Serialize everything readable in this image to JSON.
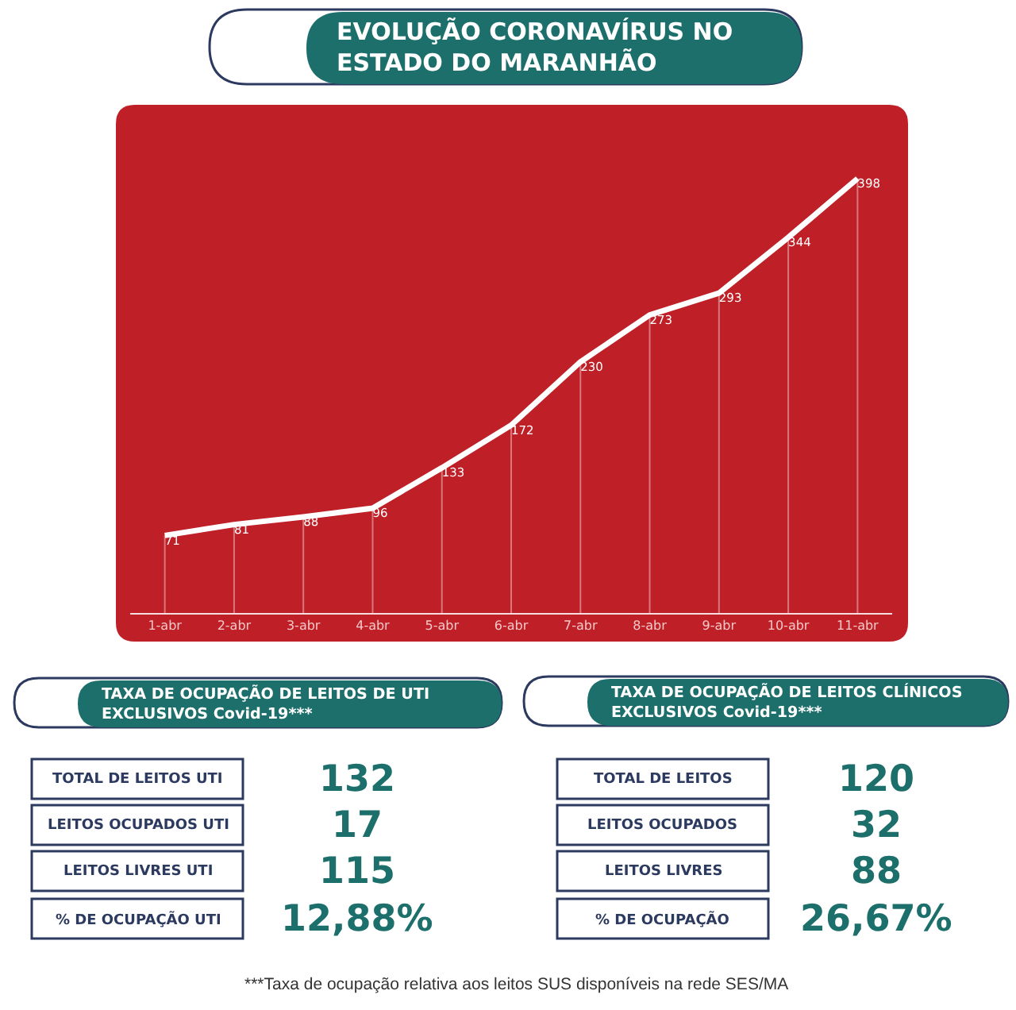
{
  "chart_data": [
    {
      "type": "line",
      "title": "EVOLUÇÃO CORONAVÍRUS NO\nESTADO DO MARANHÃO",
      "categories": [
        "1-abr",
        "2-abr",
        "3-abr",
        "4-abr",
        "5-abr",
        "6-abr",
        "7-abr",
        "8-abr",
        "9-abr",
        "10-abr",
        "11-abr"
      ],
      "values": [
        71,
        81,
        88,
        96,
        133,
        172,
        230,
        273,
        293,
        344,
        398
      ],
      "color": "#ffffff",
      "data_labels": true,
      "tick_labels": "x",
      "grid": "x"
    },
    {
      "type": "other",
      "title": "TAXA DE OCUPAÇÃO DE LEITOS DE UTI\nEXCLUSIVOS Covid-19***",
      "annotations": [
        "TOTAL DE LEITOS UTI",
        "132",
        "LEITOS OCUPADOS UTI",
        "17",
        "LEITOS LIVRES UTI",
        "115",
        "% DE OCUPAÇÃO UTI",
        "12,88%"
      ]
    },
    {
      "type": "other",
      "title": "TAXA DE OCUPAÇÃO DE LEITOS CLÍNICOS\nEXCLUSIVOS Covid-19***",
      "annotations": [
        "TOTAL DE LEITOS",
        "120",
        "LEITOS OCUPADOS",
        "32",
        "LEITOS LIVRES",
        "88",
        "% DE OCUPAÇÃO",
        "26,67%",
        "***Taxa de ocupação relativa aos leitos SUS disponíveis na rede SES/MA"
      ]
    }
  ]
}
